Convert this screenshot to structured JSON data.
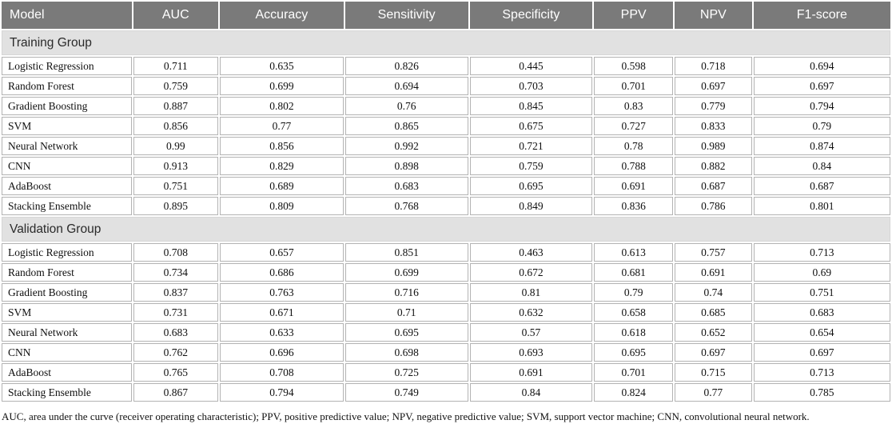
{
  "table": {
    "columns": [
      "Model",
      "AUC",
      "Accuracy",
      "Sensitivity",
      "Specificity",
      "PPV",
      "NPV",
      "F1-score"
    ],
    "sections": [
      {
        "label": "Training Group",
        "rows": [
          {
            "model": "Logistic Regression",
            "values": [
              "0.711",
              "0.635",
              "0.826",
              "0.445",
              "0.598",
              "0.718",
              "0.694"
            ]
          },
          {
            "model": "Random Forest",
            "values": [
              "0.759",
              "0.699",
              "0.694",
              "0.703",
              "0.701",
              "0.697",
              "0.697"
            ]
          },
          {
            "model": "Gradient Boosting",
            "values": [
              "0.887",
              "0.802",
              "0.76",
              "0.845",
              "0.83",
              "0.779",
              "0.794"
            ]
          },
          {
            "model": "SVM",
            "values": [
              "0.856",
              "0.77",
              "0.865",
              "0.675",
              "0.727",
              "0.833",
              "0.79"
            ]
          },
          {
            "model": "Neural Network",
            "values": [
              "0.99",
              "0.856",
              "0.992",
              "0.721",
              "0.78",
              "0.989",
              "0.874"
            ]
          },
          {
            "model": "CNN",
            "values": [
              "0.913",
              "0.829",
              "0.898",
              "0.759",
              "0.788",
              "0.882",
              "0.84"
            ]
          },
          {
            "model": "AdaBoost",
            "values": [
              "0.751",
              "0.689",
              "0.683",
              "0.695",
              "0.691",
              "0.687",
              "0.687"
            ]
          },
          {
            "model": "Stacking Ensemble",
            "values": [
              "0.895",
              "0.809",
              "0.768",
              "0.849",
              "0.836",
              "0.786",
              "0.801"
            ]
          }
        ]
      },
      {
        "label": "Validation Group",
        "rows": [
          {
            "model": "Logistic Regression",
            "values": [
              "0.708",
              "0.657",
              "0.851",
              "0.463",
              "0.613",
              "0.757",
              "0.713"
            ]
          },
          {
            "model": "Random Forest",
            "values": [
              "0.734",
              "0.686",
              "0.699",
              "0.672",
              "0.681",
              "0.691",
              "0.69"
            ]
          },
          {
            "model": "Gradient Boosting",
            "values": [
              "0.837",
              "0.763",
              "0.716",
              "0.81",
              "0.79",
              "0.74",
              "0.751"
            ]
          },
          {
            "model": "SVM",
            "values": [
              "0.731",
              "0.671",
              "0.71",
              "0.632",
              "0.658",
              "0.685",
              "0.683"
            ]
          },
          {
            "model": "Neural Network",
            "values": [
              "0.683",
              "0.633",
              "0.695",
              "0.57",
              "0.618",
              "0.652",
              "0.654"
            ]
          },
          {
            "model": "CNN",
            "values": [
              "0.762",
              "0.696",
              "0.698",
              "0.693",
              "0.695",
              "0.697",
              "0.697"
            ]
          },
          {
            "model": "AdaBoost",
            "values": [
              "0.765",
              "0.708",
              "0.725",
              "0.691",
              "0.701",
              "0.715",
              "0.713"
            ]
          },
          {
            "model": "Stacking Ensemble",
            "values": [
              "0.867",
              "0.794",
              "0.749",
              "0.84",
              "0.824",
              "0.77",
              "0.785"
            ]
          }
        ]
      }
    ],
    "footnote": "AUC, area under the curve (receiver operating characteristic); PPV, positive predictive value; NPV, negative predictive value; SVM, support vector machine; CNN, convolutional neural network.",
    "column_widths_pct": [
      14.8,
      9.7,
      14.1,
      14.0,
      14.0,
      9.0,
      8.8,
      15.6
    ]
  },
  "colors": {
    "header_bg": "#7a7a7a",
    "header_text": "#ffffff",
    "section_bg": "#e1e1e1",
    "cell_border": "#b3b3b3"
  }
}
